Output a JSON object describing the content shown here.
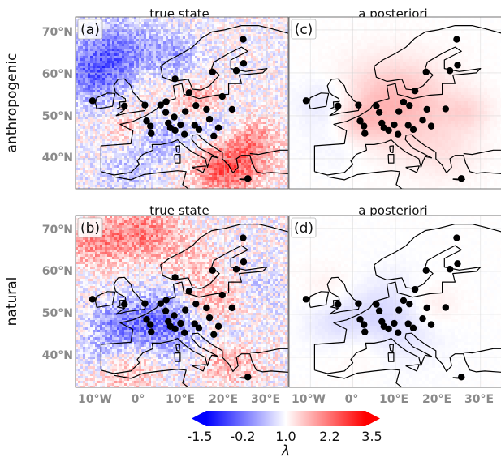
{
  "chart_data": {
    "type": "heatmap",
    "column_titles": [
      "true state",
      "a posteriori"
    ],
    "row_labels": [
      "anthropogenic",
      "natural"
    ],
    "panels": [
      {
        "label": "(a)",
        "row": "anthropogenic",
        "column": "true state"
      },
      {
        "label": "(c)",
        "row": "anthropogenic",
        "column": "a posteriori"
      },
      {
        "label": "(b)",
        "row": "natural",
        "column": "true state"
      },
      {
        "label": "(d)",
        "row": "natural",
        "column": "a posteriori"
      }
    ],
    "lat_ticks": [
      "70°N",
      "60°N",
      "50°N",
      "40°N"
    ],
    "lat_values": [
      70,
      60,
      50,
      40
    ],
    "lon_ticks": [
      "10°W",
      "0°",
      "10°E",
      "20°E",
      "30°E"
    ],
    "lon_values": [
      -10,
      0,
      10,
      20,
      30
    ],
    "lon_range": [
      -15,
      35
    ],
    "lat_range": [
      33,
      73
    ],
    "colorbar": {
      "label": "λ",
      "ticks": [
        "-1.5",
        "-0.2",
        "1.0",
        "2.2",
        "3.5"
      ],
      "tick_values": [
        -1.5,
        -0.2,
        1.0,
        2.2,
        3.5
      ],
      "range": [
        -1.5,
        3.5
      ],
      "colors": [
        "#0000ff",
        "#ffffff",
        "#ff0000"
      ],
      "extend": "both"
    },
    "stations": [
      [
        -11,
        53.5
      ],
      [
        -3.5,
        52.3
      ],
      [
        1.3,
        52.5
      ],
      [
        1.7,
        48.8
      ],
      [
        2.6,
        47.6
      ],
      [
        2.8,
        45.9
      ],
      [
        5,
        52.5
      ],
      [
        6.3,
        53.3
      ],
      [
        6.2,
        50.8
      ],
      [
        6.8,
        48.3
      ],
      [
        7.3,
        47.2
      ],
      [
        8.2,
        49.7
      ],
      [
        8.4,
        46.6
      ],
      [
        8.4,
        58.6
      ],
      [
        9.7,
        47.9
      ],
      [
        10.6,
        45.7
      ],
      [
        10.8,
        51
      ],
      [
        11.7,
        55.4
      ],
      [
        13,
        47.8
      ],
      [
        13.3,
        52.4
      ],
      [
        14,
        46.8
      ],
      [
        15.8,
        51.5
      ],
      [
        16.5,
        49.2
      ],
      [
        17.5,
        45.3
      ],
      [
        18.6,
        47.2
      ],
      [
        17.2,
        60.2
      ],
      [
        19.5,
        54.5
      ],
      [
        21.8,
        51.5
      ],
      [
        22.8,
        60.5
      ],
      [
        24.5,
        62.2
      ],
      [
        24.4,
        67.8
      ],
      [
        25.5,
        35.4
      ]
    ],
    "posterior_stations": [
      [
        -11,
        53.5
      ],
      [
        -3.5,
        52.3
      ],
      [
        1.3,
        52.5
      ],
      [
        1.7,
        48.8
      ],
      [
        2.6,
        47.6
      ],
      [
        2.8,
        45.9
      ],
      [
        5.5,
        52.3
      ],
      [
        6.2,
        50.8
      ],
      [
        6.8,
        48.3
      ],
      [
        7.3,
        47.2
      ],
      [
        8.4,
        46.6
      ],
      [
        9.7,
        47.9
      ],
      [
        10.6,
        45.7
      ],
      [
        10.8,
        51
      ],
      [
        11.9,
        53.2
      ],
      [
        13,
        47.8
      ],
      [
        13.3,
        52.4
      ],
      [
        14.2,
        46.8
      ],
      [
        16.4,
        49
      ],
      [
        18.4,
        47.6
      ],
      [
        17.4,
        51.5
      ],
      [
        14.6,
        55.8
      ],
      [
        17.2,
        60.2
      ],
      [
        22.8,
        60.5
      ],
      [
        21.8,
        51.6
      ],
      [
        24.6,
        61.8
      ],
      [
        24.4,
        67.8
      ],
      [
        25.5,
        35.4
      ]
    ],
    "anthro_true_blobs": [
      [
        -5,
        64,
        8,
        -1.2
      ],
      [
        -11,
        59,
        6,
        -0.9
      ],
      [
        5,
        45,
        5,
        -0.8
      ],
      [
        18,
        48,
        4,
        -0.7
      ],
      [
        22,
        39,
        6,
        1.4
      ],
      [
        14,
        53.5,
        4,
        0.9
      ],
      [
        -2,
        47,
        4,
        0.7
      ],
      [
        27,
        45,
        4,
        0.7
      ],
      [
        9,
        64,
        4,
        -0.6
      ],
      [
        -3,
        37,
        5,
        -0.5
      ],
      [
        18,
        36,
        4,
        0.5
      ],
      [
        0,
        57,
        5,
        0.5
      ]
    ],
    "natural_true_blobs": [
      [
        7,
        48,
        7,
        -1.4
      ],
      [
        -5,
        47,
        5,
        -1.0
      ],
      [
        17,
        52,
        6,
        1.0
      ],
      [
        1,
        69,
        6,
        1.2
      ],
      [
        -11,
        67,
        5,
        1.0
      ],
      [
        -4,
        38,
        6,
        0.8
      ],
      [
        21,
        39,
        5,
        0.8
      ],
      [
        -9,
        40,
        4,
        -0.7
      ],
      [
        12,
        62,
        4,
        0.5
      ],
      [
        22,
        46,
        4,
        -0.4
      ],
      [
        28,
        56,
        5,
        -0.4
      ]
    ],
    "anthro_post_blobs": [
      [
        10,
        52.5,
        9,
        0.75
      ],
      [
        -6,
        53,
        5,
        -0.3
      ],
      [
        1,
        48.5,
        4,
        0.4
      ],
      [
        -2,
        45,
        6,
        -0.2
      ],
      [
        27,
        51,
        4,
        0.3
      ],
      [
        22,
        41,
        6,
        0.2
      ]
    ],
    "natural_post_blobs": [
      [
        9,
        49,
        8,
        -0.45
      ],
      [
        -4,
        48,
        5,
        -0.25
      ],
      [
        18,
        52,
        5,
        0.3
      ],
      [
        -5,
        56,
        5,
        0.15
      ],
      [
        2,
        42,
        5,
        0.2
      ]
    ]
  }
}
